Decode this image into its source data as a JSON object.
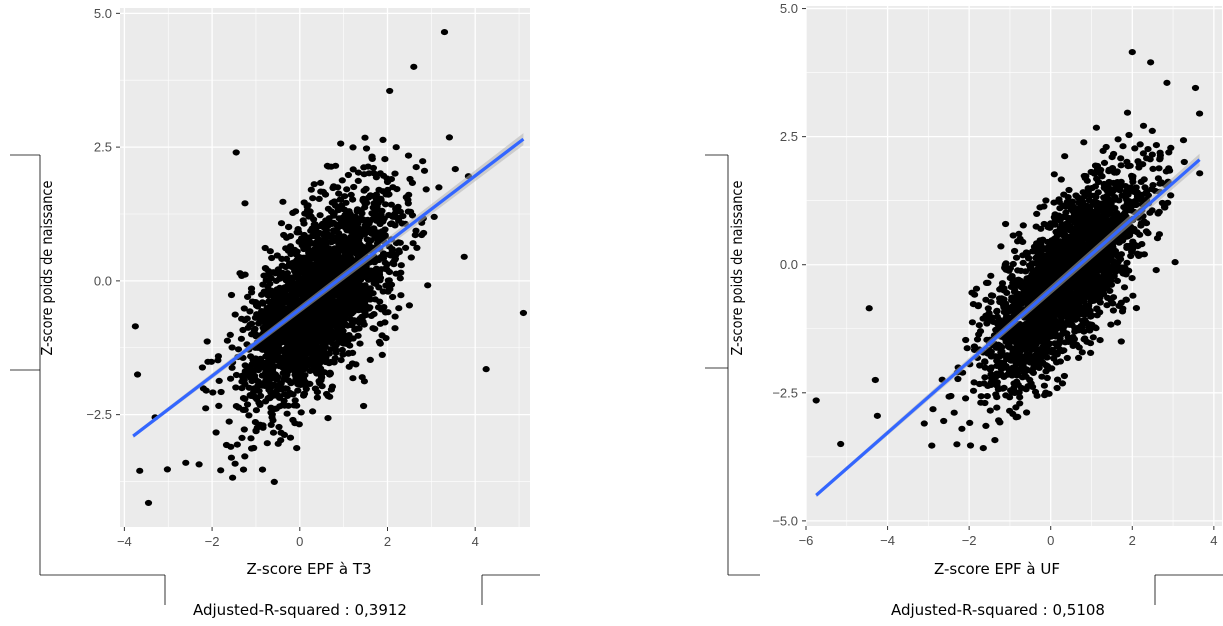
{
  "colors": {
    "panel_background": "#ebebeb",
    "grid_line": "#ffffff",
    "point": "#000000",
    "fit_line": "#3366ff",
    "confidence_band": "#b3b3b3",
    "frame_line": "#000000"
  },
  "chart_data": [
    {
      "type": "scatter",
      "title": "",
      "xlabel": "Z-score EPF à T3",
      "ylabel": "Z-score poids de naissance",
      "caption": "Adjusted-R-squared : 0,3912",
      "xlim": [
        -4.1,
        5.25
      ],
      "ylim": [
        -4.6,
        5.1
      ],
      "x_ticks": [
        -4,
        -2,
        0,
        2,
        4
      ],
      "x_tick_labels": [
        "−4",
        "−2",
        "0",
        "2",
        "4"
      ],
      "y_ticks": [
        -2.5,
        0,
        2.5,
        5
      ],
      "y_tick_labels": [
        "−2.5",
        "0.0",
        "2.5",
        "5.0"
      ],
      "grid": true,
      "legend": "none",
      "fit_line": {
        "x": [
          -3.8,
          5.1
        ],
        "y": [
          -2.9,
          2.65
        ]
      },
      "cloud": {
        "center": [
          0.4,
          -0.35
        ],
        "sd": [
          0.85,
          1.0
        ],
        "r": 0.625,
        "count": 2600
      },
      "outliers": [
        {
          "x": -3.75,
          "y": -0.85
        },
        {
          "x": -3.7,
          "y": -1.75
        },
        {
          "x": -3.65,
          "y": -3.55
        },
        {
          "x": -3.45,
          "y": -4.15
        },
        {
          "x": -3.3,
          "y": -2.55
        },
        {
          "x": -2.6,
          "y": -3.4
        },
        {
          "x": -1.45,
          "y": 2.4
        },
        {
          "x": -1.25,
          "y": 1.45
        },
        {
          "x": 3.3,
          "y": 4.65
        },
        {
          "x": 2.6,
          "y": 4.0
        },
        {
          "x": 2.05,
          "y": 3.55
        },
        {
          "x": 3.75,
          "y": 0.45
        },
        {
          "x": 4.25,
          "y": -1.65
        },
        {
          "x": 5.1,
          "y": -0.6
        }
      ]
    },
    {
      "type": "scatter",
      "title": "",
      "xlabel": "Z-score EPF à UF",
      "ylabel": "Z-score poids de naissance",
      "caption": "Adjusted-R-squared : 0,5108",
      "xlim": [
        -6.0,
        4.2
      ],
      "ylim": [
        -5.1,
        5.05
      ],
      "x_ticks": [
        -6,
        -4,
        -2,
        0,
        2,
        4
      ],
      "x_tick_labels": [
        "−6",
        "−4",
        "−2",
        "0",
        "2",
        "4"
      ],
      "y_ticks": [
        -5,
        -2.5,
        0,
        2.5,
        5
      ],
      "y_tick_labels": [
        "−5.0",
        "−2.5",
        "0.0",
        "2.5",
        "5.0"
      ],
      "grid": true,
      "legend": "none",
      "fit_line": {
        "x": [
          -5.75,
          3.65
        ],
        "y": [
          -4.5,
          2.05
        ]
      },
      "cloud": {
        "center": [
          0.35,
          -0.3
        ],
        "sd": [
          0.95,
          1.0
        ],
        "r": 0.715,
        "count": 2600
      },
      "outliers": [
        {
          "x": -5.75,
          "y": -2.65
        },
        {
          "x": -5.15,
          "y": -3.5
        },
        {
          "x": -4.45,
          "y": -0.85
        },
        {
          "x": -4.3,
          "y": -2.25
        },
        {
          "x": -4.25,
          "y": -2.95
        },
        {
          "x": -3.1,
          "y": -3.1
        },
        {
          "x": 2.0,
          "y": 4.15
        },
        {
          "x": 2.45,
          "y": 3.95
        },
        {
          "x": 3.55,
          "y": 3.45
        },
        {
          "x": 3.65,
          "y": 2.95
        },
        {
          "x": 2.85,
          "y": 3.55
        },
        {
          "x": 3.05,
          "y": 0.05
        }
      ]
    }
  ]
}
